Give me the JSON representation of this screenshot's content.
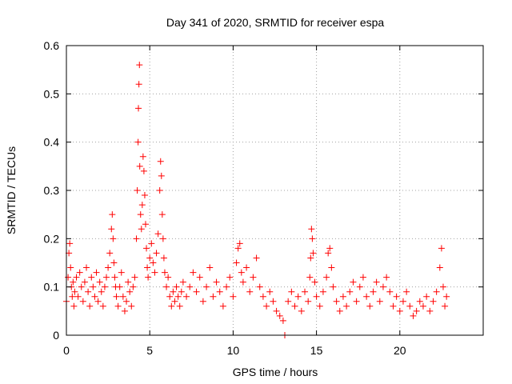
{
  "chart_data": {
    "type": "scatter",
    "title": "Day 341 of 2020, SRMTID for receiver espa",
    "xlabel": "GPS time / hours",
    "ylabel": "SRMTID / TECUs",
    "xlim": [
      0,
      25
    ],
    "ylim": [
      0,
      0.6
    ],
    "xticks": [
      0,
      5,
      10,
      15,
      20
    ],
    "xtick_labels": [
      "0",
      "5",
      "10",
      "15",
      "20"
    ],
    "yticks": [
      0,
      0.1,
      0.2,
      0.3,
      0.4,
      0.5,
      0.6
    ],
    "ytick_labels": [
      "0",
      "0.1",
      "0.2",
      "0.3",
      "0.4",
      "0.5",
      "0.6"
    ],
    "grid": true,
    "marker": "+",
    "color": "#ff0000",
    "series": [
      {
        "name": "SRMTID",
        "x": [
          0.0,
          0.1,
          0.15,
          0.2,
          0.25,
          0.3,
          0.35,
          0.4,
          0.45,
          0.5,
          0.6,
          0.7,
          0.8,
          0.9,
          1.0,
          1.1,
          1.2,
          1.3,
          1.4,
          1.5,
          1.6,
          1.7,
          1.8,
          1.9,
          2.0,
          2.1,
          2.2,
          2.3,
          2.4,
          2.5,
          2.6,
          2.7,
          2.75,
          2.8,
          2.85,
          2.9,
          2.95,
          3.0,
          3.1,
          3.2,
          3.3,
          3.4,
          3.5,
          3.6,
          3.7,
          3.8,
          3.9,
          4.0,
          4.1,
          4.2,
          4.25,
          4.3,
          4.32,
          4.35,
          4.38,
          4.4,
          4.45,
          4.5,
          4.55,
          4.6,
          4.65,
          4.7,
          4.75,
          4.8,
          4.85,
          4.9,
          5.0,
          5.1,
          5.2,
          5.3,
          5.4,
          5.5,
          5.6,
          5.65,
          5.7,
          5.75,
          5.8,
          5.85,
          5.9,
          6.0,
          6.1,
          6.2,
          6.3,
          6.4,
          6.5,
          6.6,
          6.7,
          6.8,
          6.9,
          7.0,
          7.2,
          7.4,
          7.6,
          7.8,
          8.0,
          8.2,
          8.4,
          8.6,
          8.8,
          9.0,
          9.2,
          9.4,
          9.6,
          9.8,
          10.0,
          10.2,
          10.3,
          10.4,
          10.5,
          10.6,
          10.8,
          11.0,
          11.2,
          11.4,
          11.6,
          11.8,
          12.0,
          12.2,
          12.4,
          12.6,
          12.8,
          13.0,
          13.1,
          13.3,
          13.5,
          13.7,
          13.9,
          14.1,
          14.3,
          14.5,
          14.6,
          14.65,
          14.7,
          14.75,
          14.8,
          14.9,
          15.0,
          15.2,
          15.4,
          15.6,
          15.7,
          15.8,
          15.9,
          16.0,
          16.2,
          16.4,
          16.6,
          16.8,
          17.0,
          17.2,
          17.4,
          17.6,
          17.8,
          18.0,
          18.2,
          18.4,
          18.6,
          18.8,
          19.0,
          19.2,
          19.4,
          19.6,
          19.8,
          20.0,
          20.2,
          20.4,
          20.6,
          20.8,
          21.0,
          21.2,
          21.4,
          21.6,
          21.8,
          22.0,
          22.2,
          22.4,
          22.5,
          22.6,
          22.7,
          22.8
        ],
        "y": [
          0.07,
          0.12,
          0.17,
          0.19,
          0.14,
          0.1,
          0.08,
          0.11,
          0.06,
          0.09,
          0.12,
          0.08,
          0.13,
          0.1,
          0.07,
          0.11,
          0.14,
          0.09,
          0.06,
          0.12,
          0.1,
          0.08,
          0.13,
          0.07,
          0.11,
          0.09,
          0.06,
          0.1,
          0.12,
          0.14,
          0.17,
          0.22,
          0.25,
          0.2,
          0.15,
          0.12,
          0.1,
          0.08,
          0.06,
          0.1,
          0.13,
          0.08,
          0.05,
          0.07,
          0.11,
          0.09,
          0.06,
          0.1,
          0.12,
          0.2,
          0.3,
          0.4,
          0.47,
          0.52,
          0.56,
          0.35,
          0.25,
          0.22,
          0.27,
          0.37,
          0.34,
          0.29,
          0.23,
          0.18,
          0.14,
          0.12,
          0.16,
          0.19,
          0.15,
          0.13,
          0.17,
          0.21,
          0.3,
          0.36,
          0.33,
          0.25,
          0.2,
          0.16,
          0.13,
          0.1,
          0.12,
          0.08,
          0.06,
          0.09,
          0.07,
          0.1,
          0.08,
          0.06,
          0.09,
          0.11,
          0.08,
          0.1,
          0.13,
          0.09,
          0.12,
          0.07,
          0.1,
          0.14,
          0.08,
          0.11,
          0.09,
          0.06,
          0.1,
          0.12,
          0.08,
          0.15,
          0.18,
          0.19,
          0.13,
          0.11,
          0.14,
          0.09,
          0.12,
          0.16,
          0.1,
          0.08,
          0.06,
          0.09,
          0.07,
          0.05,
          0.04,
          0.03,
          0.0,
          0.07,
          0.09,
          0.06,
          0.08,
          0.05,
          0.09,
          0.07,
          0.12,
          0.16,
          0.22,
          0.2,
          0.17,
          0.11,
          0.08,
          0.06,
          0.09,
          0.12,
          0.17,
          0.18,
          0.14,
          0.1,
          0.07,
          0.05,
          0.08,
          0.06,
          0.09,
          0.11,
          0.07,
          0.1,
          0.12,
          0.08,
          0.06,
          0.09,
          0.11,
          0.07,
          0.1,
          0.12,
          0.09,
          0.06,
          0.08,
          0.05,
          0.07,
          0.09,
          0.06,
          0.04,
          0.05,
          0.07,
          0.06,
          0.08,
          0.05,
          0.07,
          0.09,
          0.14,
          0.18,
          0.1,
          0.06,
          0.08
        ]
      }
    ]
  }
}
